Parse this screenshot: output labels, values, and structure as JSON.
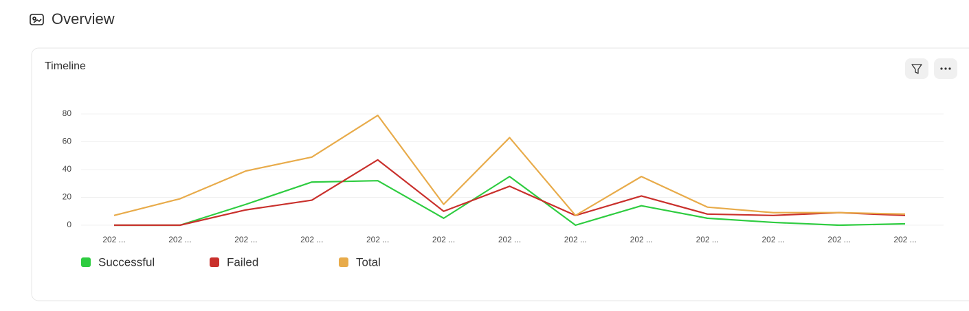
{
  "page": {
    "title": "Overview"
  },
  "chart_data": {
    "type": "line",
    "title": "Timeline",
    "categories": [
      "202 ...",
      "202 ...",
      "202 ...",
      "202 ...",
      "202 ...",
      "202 ...",
      "202 ...",
      "202 ...",
      "202 ...",
      "202 ...",
      "202 ...",
      "202 ...",
      "202 ..."
    ],
    "series": [
      {
        "name": "Successful",
        "color": "#2ecc40",
        "values": [
          0,
          0,
          15,
          31,
          32,
          5,
          35,
          0,
          14,
          5,
          2,
          0,
          1
        ]
      },
      {
        "name": "Failed",
        "color": "#c9302c",
        "values": [
          0,
          0,
          11,
          18,
          47,
          10,
          28,
          7,
          21,
          8,
          7,
          9,
          7
        ]
      },
      {
        "name": "Total",
        "color": "#e8ab4a",
        "values": [
          7,
          19,
          39,
          49,
          79,
          15,
          63,
          7,
          35,
          13,
          9,
          9,
          8
        ]
      }
    ],
    "ylim": [
      0,
      80
    ],
    "yticks": [
      0,
      20,
      40,
      60,
      80
    ],
    "grid": true
  }
}
